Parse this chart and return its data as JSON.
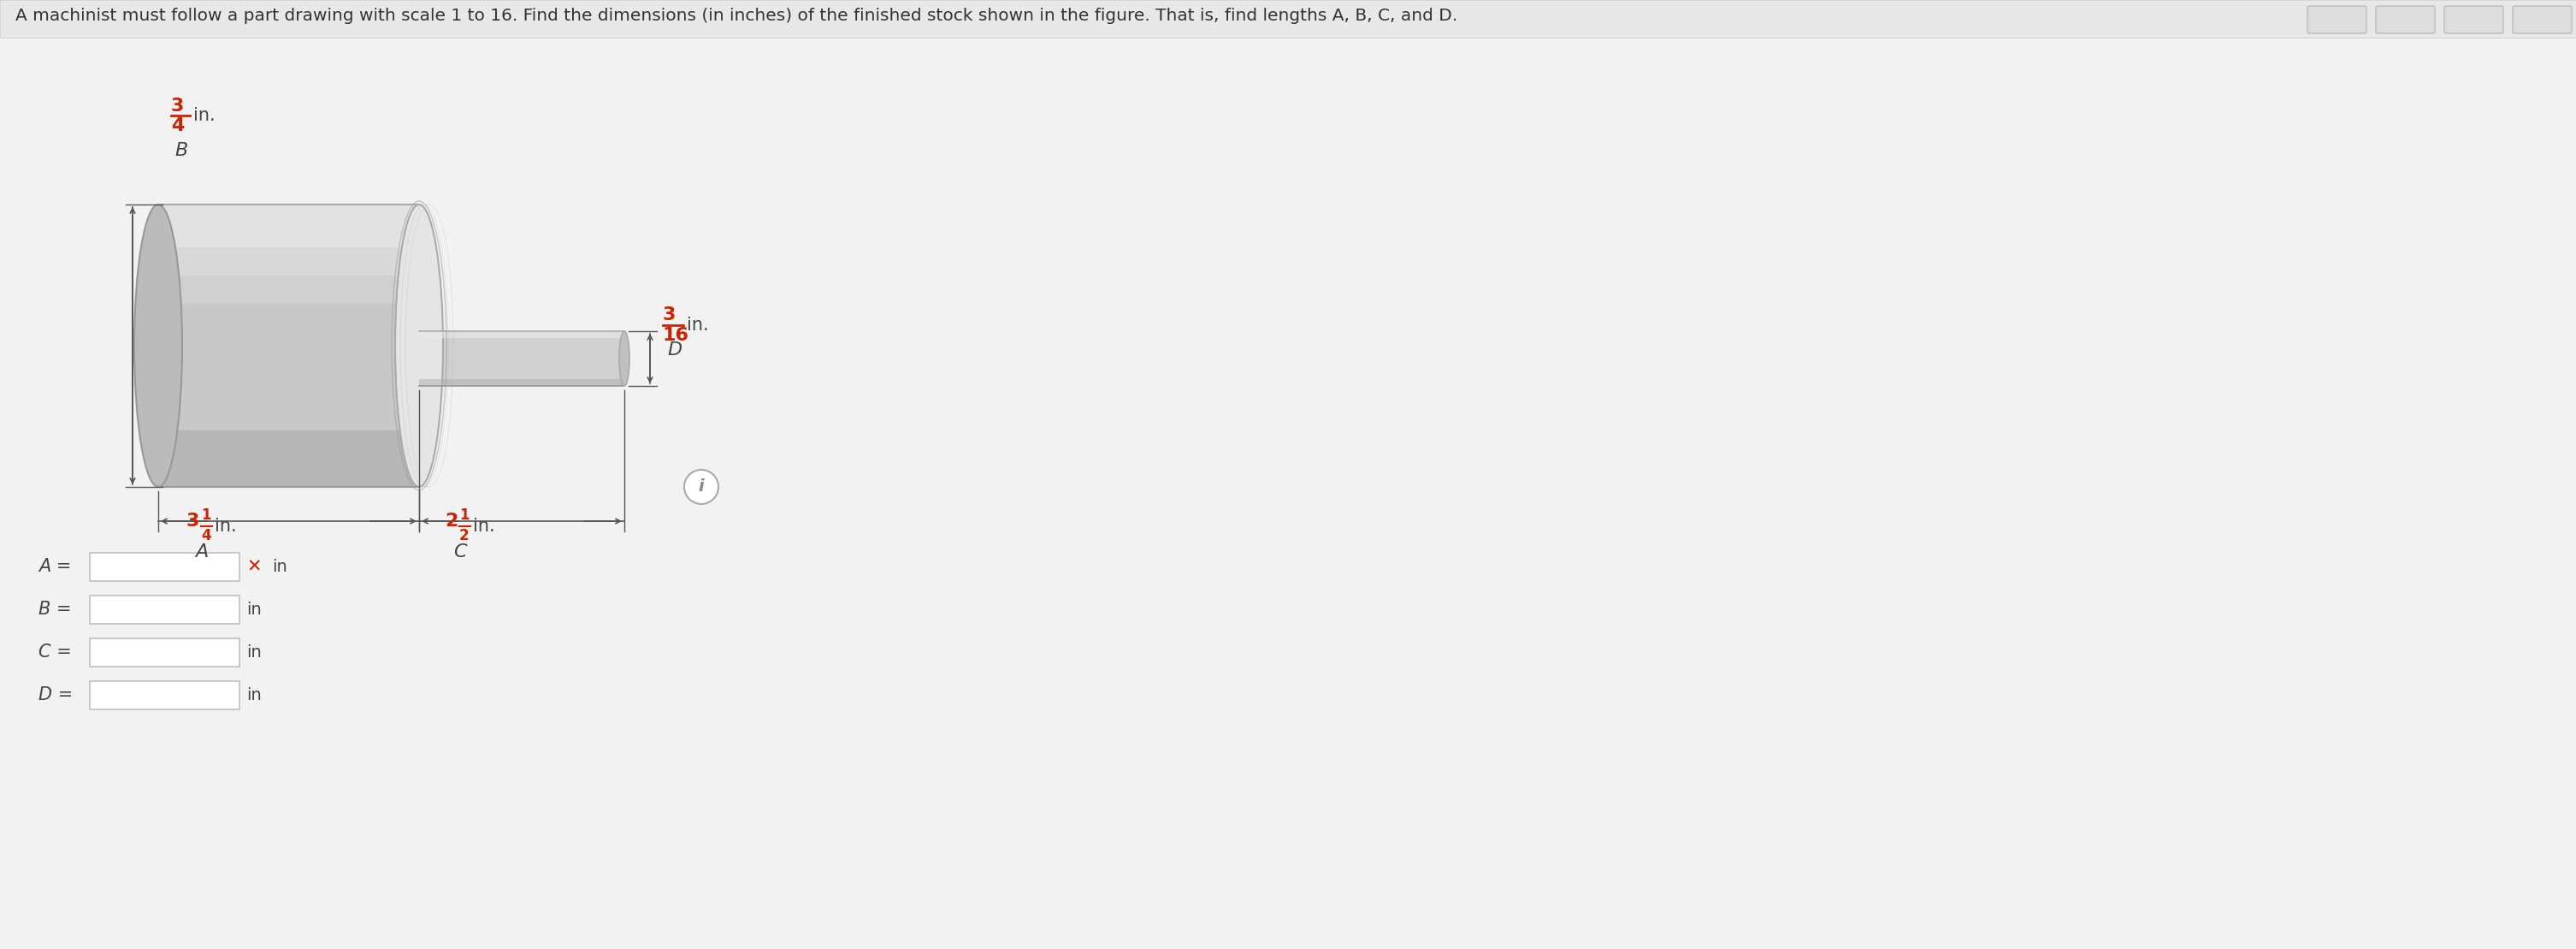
{
  "title": "A machinist must follow a part drawing with scale 1 to 16. Find the dimensions (in inches) of the finished stock shown in the figure. That is, find lengths A, B, C, and D.",
  "title_color": "#333333",
  "title_fontsize": 14.5,
  "bg_color": "#eeeeee",
  "fraction_color": "#cc2200",
  "label_color": "#444444",
  "arrow_color": "#555555",
  "dim_A_whole": "3",
  "dim_A_frac_num": "1",
  "dim_A_frac_den": "4",
  "dim_B_frac_num": "3",
  "dim_B_frac_den": "4",
  "dim_C_whole": "2",
  "dim_C_frac_num": "1",
  "dim_C_frac_den": "2",
  "dim_D_frac_num": "3",
  "dim_D_frac_den": "16",
  "input_labels": [
    "A",
    "B",
    "C",
    "D"
  ],
  "input_units": [
    "in",
    "in",
    "in",
    "in"
  ],
  "x_mark_color": "#cc2200",
  "cyl_body_color": "#c8c8c8",
  "cyl_top_color": "#e0e0e0",
  "cyl_shadow_color": "#b0b0b0",
  "shaft_color": "#d0d0d0"
}
